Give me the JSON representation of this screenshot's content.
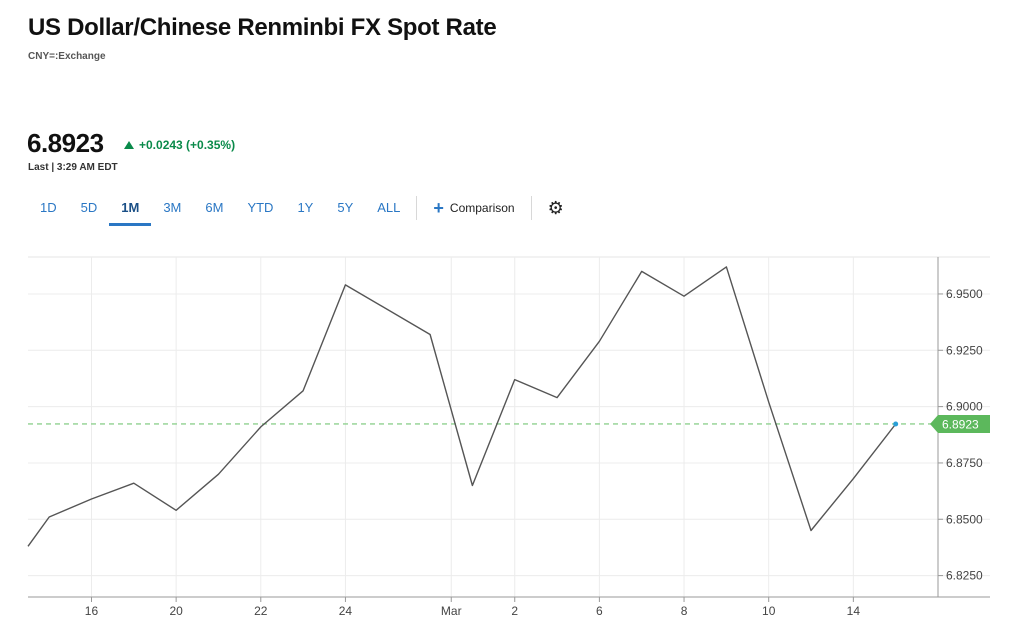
{
  "header": {
    "title": "US Dollar/Chinese Renminbi FX Spot Rate",
    "symbol": "CNY=:Exchange"
  },
  "quote": {
    "price": "6.8923",
    "change": "+0.0243 (+0.35%)",
    "last": "Last | 3:29 AM EDT",
    "change_color": "#0a8a4a"
  },
  "range_tabs": [
    "1D",
    "5D",
    "1M",
    "3M",
    "6M",
    "YTD",
    "1Y",
    "5Y",
    "ALL"
  ],
  "active_tab": "1M",
  "toolbar": {
    "comparison_label": "Comparison",
    "plus_icon": "plus-icon",
    "settings_icon": "gear-icon"
  },
  "chart_data": {
    "type": "line",
    "series": [
      {
        "x": [
          0,
          0.5,
          1.5,
          2.5,
          3.5,
          4.5,
          5.5,
          6.5,
          7.5,
          9.5,
          10.5,
          11.5,
          12.5,
          13.5,
          14.5,
          15.5,
          16.5,
          17.5,
          18.5,
          19.5,
          20.5
        ],
        "values": [
          6.838,
          6.851,
          6.859,
          6.866,
          6.854,
          6.87,
          6.891,
          6.907,
          6.954,
          6.932,
          6.865,
          6.912,
          6.904,
          6.929,
          6.96,
          6.949,
          6.962,
          6.902,
          6.845,
          6.868,
          6.8923
        ]
      }
    ],
    "x_ticks": [
      {
        "x": 1.5,
        "label": "16"
      },
      {
        "x": 3.5,
        "label": "20"
      },
      {
        "x": 5.5,
        "label": "22"
      },
      {
        "x": 7.5,
        "label": "24"
      },
      {
        "x": 10,
        "label": "Mar"
      },
      {
        "x": 11.5,
        "label": "2"
      },
      {
        "x": 13.5,
        "label": "6"
      },
      {
        "x": 15.5,
        "label": "8"
      },
      {
        "x": 17.5,
        "label": "10"
      },
      {
        "x": 19.5,
        "label": "14"
      }
    ],
    "y_ticks": [
      "6.9500",
      "6.9250",
      "6.9000",
      "6.8750",
      "6.8500",
      "6.8250"
    ],
    "y_tick_values": [
      6.95,
      6.925,
      6.9,
      6.875,
      6.85,
      6.825
    ],
    "ylim": [
      6.8155,
      6.9664
    ],
    "xlim": [
      0,
      21.5
    ],
    "last_value": 6.8923,
    "last_label": "6.8923",
    "line_color": "#555555",
    "reference_line_color": "#8fd18f",
    "badge_color": "#5cb85c",
    "grid": true
  }
}
